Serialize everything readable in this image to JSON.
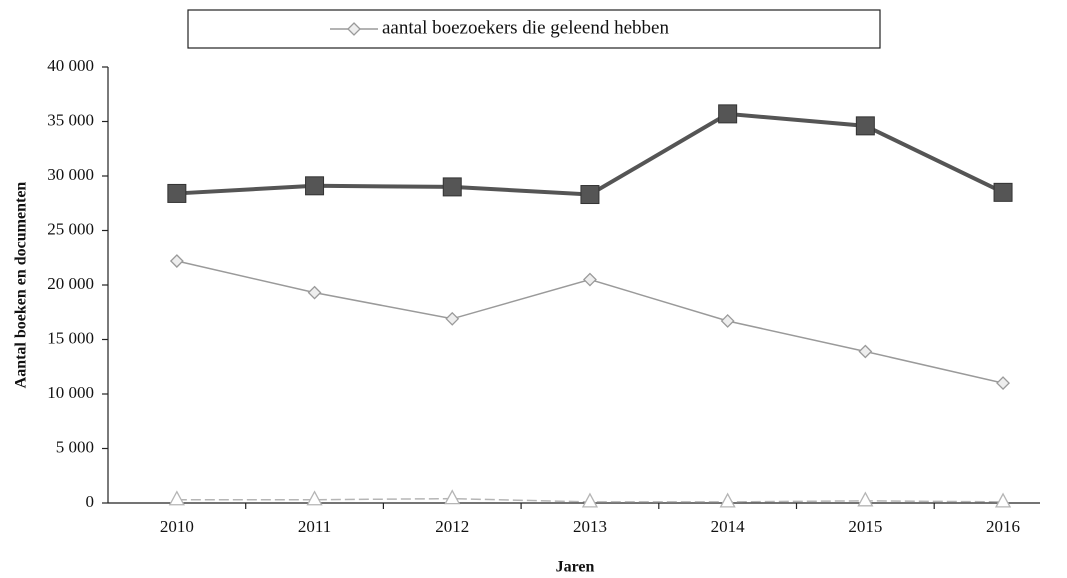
{
  "chart_data": {
    "type": "line",
    "categories": [
      "2010",
      "2011",
      "2012",
      "2013",
      "2014",
      "2015",
      "2016"
    ],
    "series": [
      {
        "name": "aantal boezoekers die geleend hebben",
        "color": "#9a9a9a",
        "marker": "diamond",
        "values": [
          22200,
          19300,
          16900,
          20500,
          16700,
          13900,
          11000
        ]
      },
      {
        "color": "#555555",
        "marker": "square",
        "values": [
          28400,
          29100,
          29000,
          28300,
          35700,
          34600,
          28500
        ]
      },
      {
        "color": "#b5b5b5",
        "marker": "triangle",
        "values": [
          300,
          300,
          400,
          100,
          100,
          200,
          100
        ]
      }
    ],
    "ylim": [
      0,
      40000
    ],
    "yticks": [
      0,
      {
        "value": 5000,
        "label": "5 000"
      },
      {
        "value": 10000,
        "label": "10 000"
      },
      {
        "value": 15000,
        "label": "15 000"
      },
      {
        "value": 20000,
        "label": "20 000"
      },
      {
        "value": 25000,
        "label": "25 000"
      },
      {
        "value": 30000,
        "label": "30 000"
      },
      {
        "value": 35000,
        "label": "35 000"
      },
      {
        "value": 40000,
        "label": "40 000"
      }
    ],
    "ylabel": "Aantal boeken en documenten",
    "xlabel": "Jaren",
    "legend": "top"
  }
}
